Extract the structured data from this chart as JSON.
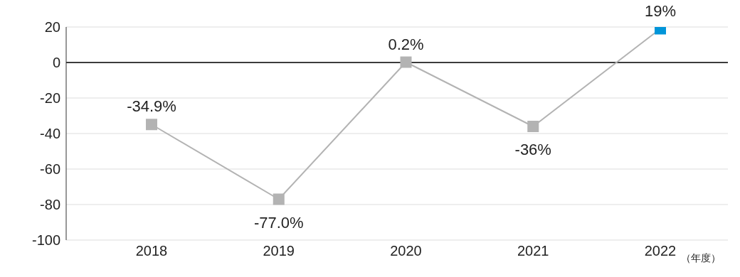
{
  "chart_data": {
    "type": "line",
    "categories": [
      "2018",
      "2019",
      "2020",
      "2021",
      "2022"
    ],
    "series": [
      {
        "color": "#b3b3b3",
        "colors": [
          "#b3b3b3",
          "#b3b3b3",
          "#b3b3b3",
          "#b3b3b3",
          "#0095d9"
        ],
        "values": [
          -34.9,
          -77.0,
          0.2,
          -36,
          19
        ],
        "value_labels": [
          "-34.9%",
          "-77.0%",
          "0.2%",
          "-36%",
          "19%"
        ]
      }
    ],
    "xlabel": "（年度）",
    "ylim": [
      -100,
      20
    ],
    "yticks": [
      -100,
      -80,
      -60,
      -40,
      -20,
      0,
      20
    ],
    "grid": "y",
    "marker": "square",
    "line_style": "solid",
    "ref_lines": [
      {
        "axis": "y",
        "value": 0,
        "color": "#000000"
      }
    ]
  }
}
